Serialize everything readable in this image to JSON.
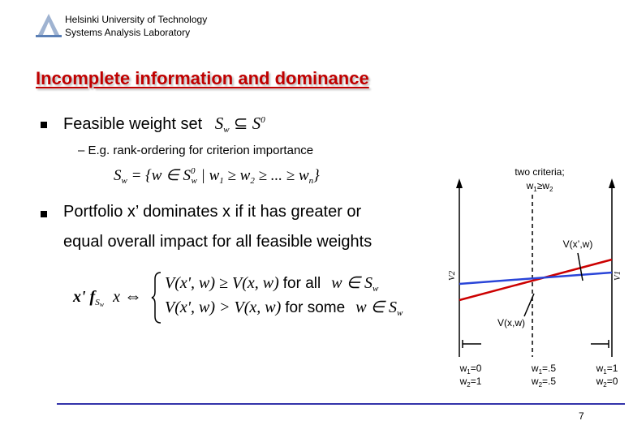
{
  "header": {
    "org_line1": "Helsinki University of Technology",
    "org_line2": "Systems Analysis Laboratory"
  },
  "slide": {
    "title": "Incomplete information and dominance",
    "bullet1": {
      "text": "Feasible weight set",
      "formula_S": "S",
      "formula_w": "w",
      "formula_subset": "⊆",
      "formula_S0": "S",
      "formula_0": "0"
    },
    "subitem": "– E.g. rank-ordering for criterion importance",
    "formula1": {
      "lhs": "S",
      "lhs_sub": "w",
      "eq": " = {w ∈ S",
      "sup0": "0",
      "sub_w": "w",
      "rest": " | w",
      "s1": "1",
      "ge1": " ≥ w",
      "s2": "2",
      "ge2": " ≥ ... ≥ w",
      "sn": "n",
      "close": "}"
    },
    "bullet2": {
      "line1": "Portfolio x’ dominates x if it has greater or",
      "line2": "equal overall impact for all feasible weights"
    },
    "formula2": {
      "lhs": "x' f",
      "lhs_sub": "S",
      "lhs_subsub": "w",
      "x": "x",
      "arrow": "⇔",
      "row1_expr": "V(x', w) ≥ V(x, w)",
      "row1_kw": "for all",
      "row1_set": "w ∈ S",
      "row1_sub": "w",
      "row2_expr": "V(x', w) > V(x, w)",
      "row2_kw": "for some",
      "row2_set": "w ∈ S",
      "row2_sub": "w"
    },
    "page_number": "7"
  },
  "chart_data": {
    "type": "line",
    "title": "two criteria;",
    "subtitle": "w1≥w2",
    "left_axis_label": "V2",
    "right_axis_label": "V1",
    "series": [
      {
        "name": "V(x’,w)",
        "y": [
          0.35,
          0.6
        ],
        "color": "#cc0000"
      },
      {
        "name": "V(x,w)",
        "y": [
          0.45,
          0.52
        ],
        "color": "#2a45d8"
      }
    ],
    "ticks": [
      {
        "l1": "w1=0",
        "l2": "w2=1"
      },
      {
        "l1": "w1=.5",
        "l2": "w2=.5"
      },
      {
        "l1": "w1=1",
        "l2": "w2=0"
      }
    ],
    "colors": {
      "feasible_marker": "#000000"
    }
  }
}
